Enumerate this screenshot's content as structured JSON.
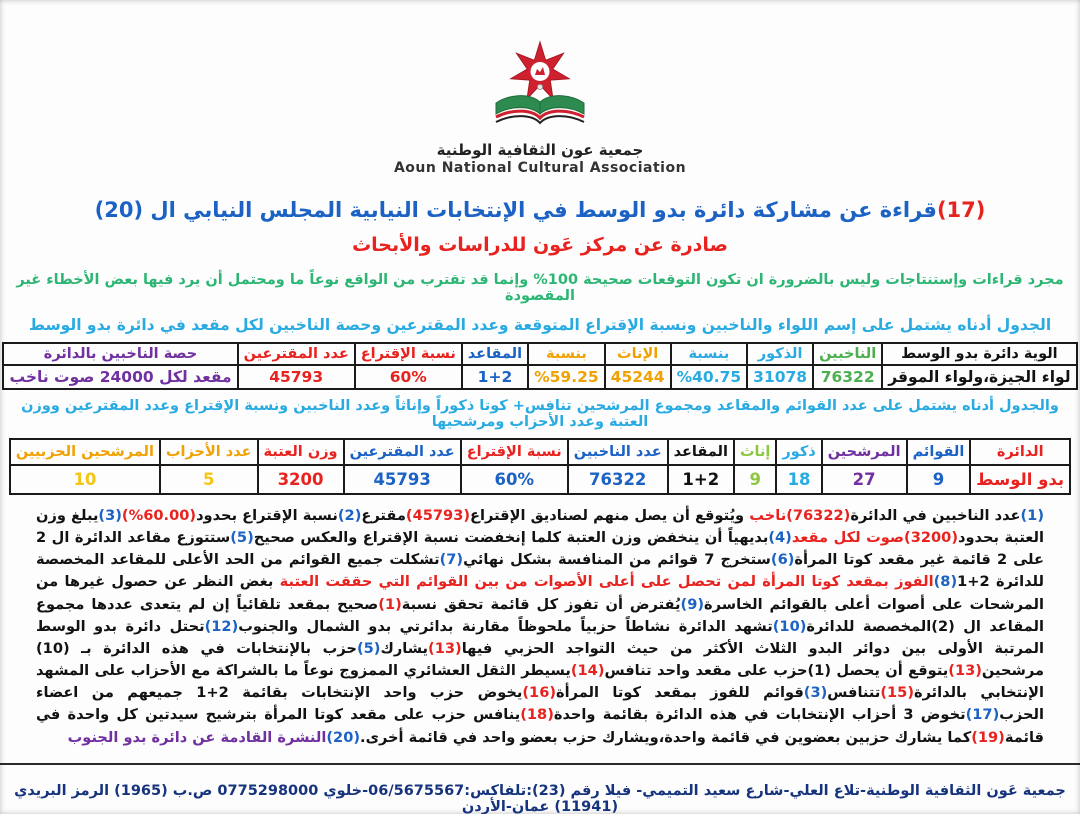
{
  "palette": {
    "black": "#121212",
    "blue": "#1b62c4",
    "cyan": "#29abe2",
    "red": "#e8231f",
    "green": "#4caf50",
    "lightgreen": "#8dc63f",
    "orange": "#f0a202",
    "yellow": "#f5c518",
    "purple": "#7030a0",
    "navy": "#16337d"
  },
  "logo": {
    "arabic": "جمعية عون الثقافية الوطنية",
    "english": "Aoun National Cultural Association",
    "star_color": "#cf2030",
    "book_color": "#2e8b4f"
  },
  "header": {
    "title_num": "(17)",
    "title": "قراءة عن مشاركة دائرة بدو الوسط في الإنتخابات النيابية المجلس النيابي ال (20)",
    "subtitle": "صادرة عن مركز عَون للدراسات والأبحاث",
    "disclaimer": "مجرد قراءات وإستنتاجات وليس بالضرورة ان تكون التوقعات صحيحة 100% وإنما قد تقترب من الواقع نوعاً ما ومحتمل أن يرد فيها بعض الأخطاء غير المقصودة",
    "table1_intro": "الجدول أدناه يشتمل على إسم اللواء والناخبين ونسبة الإقتراع المتوقعة وعدد المقترعين وحصة الناخبين لكل مقعد في دائرة بدو الوسط",
    "table2_intro": "والجدول أدناه يشتمل على عدد القوائم والمقاعد ومجموع المرشحين تنافس+ كوتا ذكوراً وإناثاً وعدد الناخبين ونسبة الإقتراع وعدد المقترعين ووزن العتبة وعدد الأحزاب ومرشحيها"
  },
  "table1": {
    "columns": [
      {
        "h": "الوية دائرة بدو الوسط",
        "v": "لواء الجيزة،ولواء الموقر",
        "hc": "black",
        "vc": "black"
      },
      {
        "h": "الناخبين",
        "v": "76322",
        "hc": "green",
        "vc": "green"
      },
      {
        "h": "الذكور",
        "v": "31078",
        "hc": "cyan",
        "vc": "cyan"
      },
      {
        "h": "بنسبة",
        "v": "%40.75",
        "hc": "cyan",
        "vc": "cyan"
      },
      {
        "h": "الإناث",
        "v": "45244",
        "hc": "orange",
        "vc": "orange"
      },
      {
        "h": "بنسبة",
        "v": "%59.25",
        "hc": "orange",
        "vc": "orange"
      },
      {
        "h": "المقاعد",
        "v": "1+2",
        "hc": "blue",
        "vc": "blue"
      },
      {
        "h": "نسبة الإقتراع",
        "v": "60%",
        "hc": "red",
        "vc": "red"
      },
      {
        "h": "عدد المقترعين",
        "v": "45793",
        "hc": "red",
        "vc": "red"
      },
      {
        "h": "حصة الناخبين بالدائرة",
        "v": "مقعد لكل 24000 صوت ناخب",
        "hc": "purple",
        "vc": "purple"
      }
    ]
  },
  "table2": {
    "columns": [
      {
        "h": "الدائرة",
        "v": "بدو الوسط",
        "hc": "red",
        "vc": "red"
      },
      {
        "h": "القوائم",
        "v": "9",
        "hc": "blue",
        "vc": "blue"
      },
      {
        "h": "المرشحين",
        "v": "27",
        "hc": "purple",
        "vc": "purple"
      },
      {
        "h": "ذكور",
        "v": "18",
        "hc": "cyan",
        "vc": "cyan"
      },
      {
        "h": "إناث",
        "v": "9",
        "hc": "lightgreen",
        "vc": "lightgreen"
      },
      {
        "h": "المقاعد",
        "v": "1+2",
        "hc": "black",
        "vc": "black"
      },
      {
        "h": "عدد الناخبين",
        "v": "76322",
        "hc": "blue",
        "vc": "blue"
      },
      {
        "h": "نسبة الإقتراع",
        "v": "60%",
        "hc": "red",
        "vc": "blue"
      },
      {
        "h": "عدد المقترعين",
        "v": "45793",
        "hc": "blue",
        "vc": "blue"
      },
      {
        "h": "وزن العتبة",
        "v": "3200",
        "hc": "red",
        "vc": "red"
      },
      {
        "h": "عدد الأحزاب",
        "v": "5",
        "hc": "orange",
        "vc": "yellow"
      },
      {
        "h": "المرشحين الحزبيين",
        "v": "10",
        "hc": "orange",
        "vc": "yellow"
      }
    ]
  },
  "body": {
    "segments": [
      {
        "t": "(1)",
        "c": "blue"
      },
      {
        "t": "عدد الناخبين في الدائرة",
        "c": "black"
      },
      {
        "t": "(76322)",
        "c": "red"
      },
      {
        "t": "ناخب",
        "c": "red"
      },
      {
        "t": " ويُتوقع أن يصل منهم لصناديق الإقتراع",
        "c": "black"
      },
      {
        "t": "(45793)",
        "c": "red"
      },
      {
        "t": "مقترع",
        "c": "black"
      },
      {
        "t": "(2)",
        "c": "blue"
      },
      {
        "t": "نسبة الإقتراع بحدود",
        "c": "black"
      },
      {
        "t": "(60.00%)",
        "c": "red"
      },
      {
        "t": "(3)",
        "c": "blue"
      },
      {
        "t": "يبلغ وزن العتبة بحدود",
        "c": "black"
      },
      {
        "t": "(3200)",
        "c": "red"
      },
      {
        "t": "صوت لكل مقعد",
        "c": "red"
      },
      {
        "t": "(4)",
        "c": "blue"
      },
      {
        "t": "بديهياً أن ينخفض وزن العتبة كلما إنخفضت نسبة الإقتراع والعكس صحيح",
        "c": "black"
      },
      {
        "t": "(5)",
        "c": "blue"
      },
      {
        "t": "ستتوزع مقاعد الدائرة ال 2 على 2 قائمة غير مقعد كوتا المرأة",
        "c": "black"
      },
      {
        "t": "(6)",
        "c": "blue"
      },
      {
        "t": "ستخرج 7 قوائم من المنافسة بشكل نهائي",
        "c": "black"
      },
      {
        "t": "(7)",
        "c": "blue"
      },
      {
        "t": "تشكلت جميع القوائم من الحد الأعلى للمقاعد المخصصة للدائرة 2+1",
        "c": "black"
      },
      {
        "t": "(8)",
        "c": "blue"
      },
      {
        "t": "الفوز بمقعد كوتا المرأة لمن تحصل على أعلى الأصوات من بين القوائم التي حققت العتبة",
        "c": "red"
      },
      {
        "t": " بغض النظر عن حصول غيرها من المرشحات على أصوات أعلى بالقوائم الخاسرة",
        "c": "black"
      },
      {
        "t": "(9)",
        "c": "blue"
      },
      {
        "t": "يُفترض أن تفوز كل قائمة تحقق نسبة",
        "c": "black"
      },
      {
        "t": "(1)",
        "c": "red"
      },
      {
        "t": "صحيح بمقعد تلقائياً إن لم يتعدى عددها مجموع المقاعد ال (2)المخصصة للدائرة",
        "c": "black"
      },
      {
        "t": "(10)",
        "c": "blue"
      },
      {
        "t": "تشهد الدائرة نشاطاً حزبياً ملحوظاً مقارنة بدائرتي بدو الشمال والجنوب",
        "c": "black"
      },
      {
        "t": "(12)",
        "c": "blue"
      },
      {
        "t": "تحتل دائرة بدو الوسط المرتبة الأولى بين دوائر البدو الثلاث الأكثر من حيث التواجد الحزبي فيها",
        "c": "black"
      },
      {
        "t": "(13)",
        "c": "red"
      },
      {
        "t": "يشارك",
        "c": "black"
      },
      {
        "t": "(5)",
        "c": "blue"
      },
      {
        "t": "حزب بالإنتخابات في هذه الدائرة بـ (10) مرشحين",
        "c": "black"
      },
      {
        "t": "(13)",
        "c": "red"
      },
      {
        "t": "يتوقع أن يحصل (1)حزب على مقعد واحد تنافس",
        "c": "black"
      },
      {
        "t": "(14)",
        "c": "red"
      },
      {
        "t": "يسيطر الثقل العشائري الممزوج نوعاً ما بالشراكة مع الأحزاب على المشهد الإنتخابي بالدائرة",
        "c": "black"
      },
      {
        "t": "(15)",
        "c": "red"
      },
      {
        "t": "تتنافس",
        "c": "black"
      },
      {
        "t": "(3)",
        "c": "blue"
      },
      {
        "t": "قوائم للفوز بمقعد كوتا المرأة",
        "c": "black"
      },
      {
        "t": "(16)",
        "c": "red"
      },
      {
        "t": "يخوض حزب واحد الإنتخابات بقائمة 2+1 جميعهم من اعضاء الحزب",
        "c": "black"
      },
      {
        "t": "(17)",
        "c": "blue"
      },
      {
        "t": "تخوض 3 أحزاب الإنتخابات في هذه الدائرة بقائمة واحدة",
        "c": "black"
      },
      {
        "t": "(18)",
        "c": "red"
      },
      {
        "t": "ينافس حزب على مقعد كوتا المرأة بترشيح سيدتين كل واحدة في قائمة",
        "c": "black"
      },
      {
        "t": "(19)",
        "c": "red"
      },
      {
        "t": "كما يشارك حزبين بعضوين في قائمة واحدة،ويشارك حزب بعضو واحد في قائمة أخرى.",
        "c": "black"
      },
      {
        "t": "(20)",
        "c": "blue"
      },
      {
        "t": "النشرة القادمة عن دائرة بدو الجنوب",
        "c": "purple"
      }
    ]
  },
  "footer": {
    "text": "جمعية عَون الثقافية الوطنية-تلاع العلي-شارع سعيد التميمي- فيلا رقم (23):تلفاكس:06/5675567-خلوي 0775298000 ص.ب (1965) الرمز البريدي (11941) عمان-الأردن"
  }
}
